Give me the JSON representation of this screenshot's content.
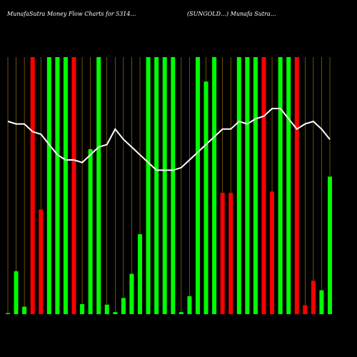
{
  "chart_data": {
    "type": "bar",
    "title_left": "MunafaSutra Money Flow Charts for 5314…",
    "title_right": "(SUNGOLD…) Munafa Sutra…",
    "categories_count": 40,
    "ylim": [
      0,
      100
    ],
    "colors": {
      "background": "#000000",
      "bull": "#00ff00",
      "bear": "#ff0000",
      "gridline": "#b8860b",
      "line": "#ffffff"
    },
    "series": [
      {
        "kind": "bars",
        "values": [
          0.4,
          16.7,
          2.9,
          100,
          40.7,
          100,
          100,
          100,
          100,
          3.9,
          64.2,
          100,
          3.7,
          0.8,
          6.3,
          15.7,
          31.1,
          100,
          100,
          100,
          100,
          0.8,
          7.0,
          100,
          90.5,
          100,
          47.2,
          47.2,
          100,
          100,
          100,
          100,
          47.7,
          100,
          100,
          100,
          3.5,
          13.0,
          9.3,
          53.5
        ],
        "directions": [
          "bull",
          "bull",
          "bull",
          "bear",
          "bear",
          "bull",
          "bull",
          "bull",
          "bear",
          "bull",
          "bull",
          "bull",
          "bull",
          "bull",
          "bull",
          "bull",
          "bull",
          "bull",
          "bull",
          "bull",
          "bull",
          "bull",
          "bull",
          "bull",
          "bull",
          "bull",
          "bear",
          "bear",
          "bull",
          "bull",
          "bull",
          "bear",
          "bear",
          "bull",
          "bull",
          "bear",
          "bear",
          "bear",
          "bull",
          "bull"
        ]
      },
      {
        "kind": "line",
        "values": [
          75,
          74,
          74,
          71,
          70,
          66,
          62,
          60,
          60,
          59,
          62,
          65,
          66,
          72,
          68,
          65,
          62,
          59,
          56,
          56,
          56,
          57,
          60,
          63,
          66,
          69,
          72,
          72,
          75,
          74,
          76,
          77,
          80,
          80,
          76,
          72,
          74,
          75,
          72,
          68
        ]
      }
    ]
  }
}
